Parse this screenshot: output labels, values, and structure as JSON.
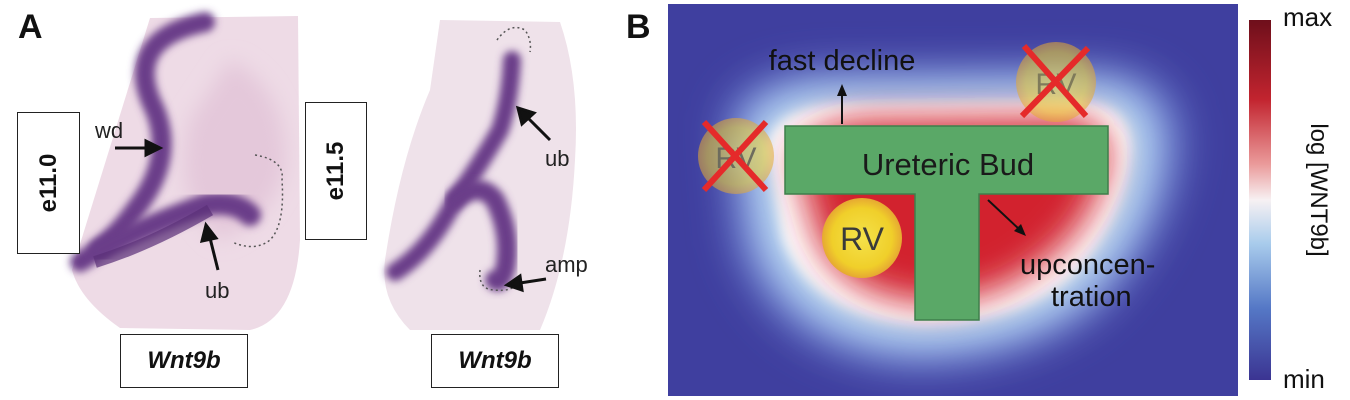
{
  "panel_a": {
    "letter": "A",
    "left_stage": "e11.0",
    "right_stage": "e11.5",
    "left_gene": "Wnt9b",
    "right_gene": "Wnt9b",
    "labels": {
      "wd": "wd",
      "ub_left": "ub",
      "ub_right": "ub",
      "amp": "amp"
    }
  },
  "panel_b": {
    "letter": "B",
    "annotations": {
      "fast_decline": "fast decline",
      "ureteric_bud": "Ureteric Bud",
      "upconcentration_line1": "upconcen-",
      "upconcentration_line2": "tration"
    },
    "rv_labels": [
      "RV",
      "RV",
      "RV"
    ],
    "colorbar": {
      "max": "max",
      "min": "min",
      "axis_label": "log [WNT9b]"
    },
    "colors": {
      "bud": "#5aa867",
      "background": "#3d3d9e",
      "high": "#c81e2d",
      "rv": "#f2dc34"
    }
  }
}
